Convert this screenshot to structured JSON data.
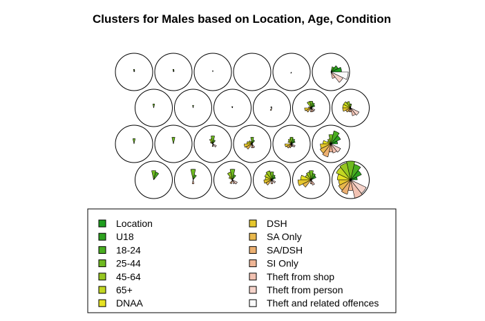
{
  "chart_data": {
    "type": "som-segment-map",
    "title": "Clusters for Males based on Location, Age, Condition",
    "legend": {
      "placement": "bottom",
      "entries": [
        {
          "label": "Location",
          "color": "#1f9e1f"
        },
        {
          "label": "U18",
          "color": "#2ea21f"
        },
        {
          "label": "18-24",
          "color": "#49ad20"
        },
        {
          "label": "25-44",
          "color": "#6fba21"
        },
        {
          "label": "45-64",
          "color": "#97c721"
        },
        {
          "label": "65+",
          "color": "#c2d622"
        },
        {
          "label": "DNAA",
          "color": "#e6e224"
        },
        {
          "label": "DSH",
          "color": "#e6c72d"
        },
        {
          "label": "SA Only",
          "color": "#e9b84c"
        },
        {
          "label": "SA/DSH",
          "color": "#ecb071"
        },
        {
          "label": "SI Only",
          "color": "#efb595"
        },
        {
          "label": "Theft from shop",
          "color": "#f2c2b2"
        },
        {
          "label": "Theft from person",
          "color": "#f5d3ca"
        },
        {
          "label": "Theft and related offences",
          "color": "#fafafa"
        }
      ]
    },
    "grid": {
      "rows": 4,
      "cols": 6,
      "topology": "hexagonal"
    },
    "nodes": [
      [
        [
          0,
          0,
          1,
          2,
          0,
          0,
          0,
          0,
          0,
          0,
          0,
          0,
          0,
          0
        ],
        [
          0,
          0,
          1,
          2,
          0,
          0,
          0,
          0,
          0,
          0,
          0,
          0,
          0,
          0
        ],
        [
          0,
          0,
          0,
          1,
          0,
          0,
          0,
          0,
          0,
          0,
          0,
          0,
          0,
          0
        ],
        [
          0,
          0,
          0,
          0,
          0,
          0,
          0,
          0,
          0,
          0,
          0,
          0,
          0,
          0
        ],
        [
          0,
          0,
          0,
          0,
          0,
          0,
          0,
          0,
          0,
          1,
          0,
          0,
          0,
          0
        ],
        [
          8,
          6,
          4,
          0,
          0,
          0,
          0,
          0,
          0,
          0,
          0,
          5,
          10,
          13
        ]
      ],
      [
        [
          0,
          0,
          0,
          3,
          0,
          0,
          0,
          0,
          0,
          0,
          0,
          0,
          0,
          0
        ],
        [
          0,
          0,
          0,
          2,
          0,
          0,
          0,
          0,
          0,
          0,
          0,
          0,
          0,
          0
        ],
        [
          0,
          0,
          0,
          1,
          1,
          0,
          0,
          0,
          0,
          0,
          0,
          0,
          0,
          0
        ],
        [
          0,
          0,
          0,
          0,
          1,
          1,
          0,
          0,
          0,
          2,
          0,
          0,
          0,
          0
        ],
        [
          0,
          3,
          4,
          5,
          5,
          0,
          2,
          5,
          4,
          0,
          3,
          3,
          3,
          0
        ],
        [
          0,
          0,
          0,
          3,
          5,
          6,
          6,
          6,
          4,
          3,
          3,
          6,
          7,
          0
        ]
      ],
      [
        [
          0,
          0,
          0,
          4,
          0,
          0,
          0,
          0,
          0,
          0,
          0,
          0,
          0,
          0
        ],
        [
          0,
          0,
          0,
          5,
          0,
          0,
          0,
          0,
          0,
          0,
          0,
          0,
          0,
          0
        ],
        [
          0,
          0,
          3,
          6,
          4,
          2,
          0,
          0,
          0,
          0,
          2,
          0,
          3,
          0
        ],
        [
          0,
          0,
          3,
          5,
          2,
          3,
          4,
          6,
          5,
          0,
          3,
          3,
          0,
          0
        ],
        [
          0,
          3,
          4,
          5,
          4,
          3,
          0,
          5,
          4,
          3,
          2,
          2,
          3,
          0
        ],
        [
          5,
          8,
          10,
          7,
          4,
          3,
          6,
          8,
          9,
          10,
          6,
          7,
          8,
          0
        ]
      ],
      [
        [
          0,
          0,
          6,
          7,
          0,
          0,
          0,
          0,
          0,
          0,
          0,
          0,
          0,
          0
        ],
        [
          0,
          0,
          4,
          8,
          0,
          0,
          0,
          0,
          0,
          0,
          3,
          0,
          0,
          0
        ],
        [
          0,
          0,
          4,
          8,
          6,
          3,
          0,
          0,
          0,
          3,
          0,
          3,
          4,
          0
        ],
        [
          0,
          3,
          4,
          6,
          7,
          6,
          5,
          6,
          5,
          0,
          3,
          0,
          3,
          0
        ],
        [
          0,
          4,
          5,
          7,
          6,
          5,
          8,
          10,
          7,
          0,
          3,
          4,
          0,
          0
        ],
        [
          5,
          9,
          12,
          14,
          13,
          12,
          10,
          9,
          10,
          11,
          8,
          14,
          13,
          0
        ]
      ]
    ]
  }
}
